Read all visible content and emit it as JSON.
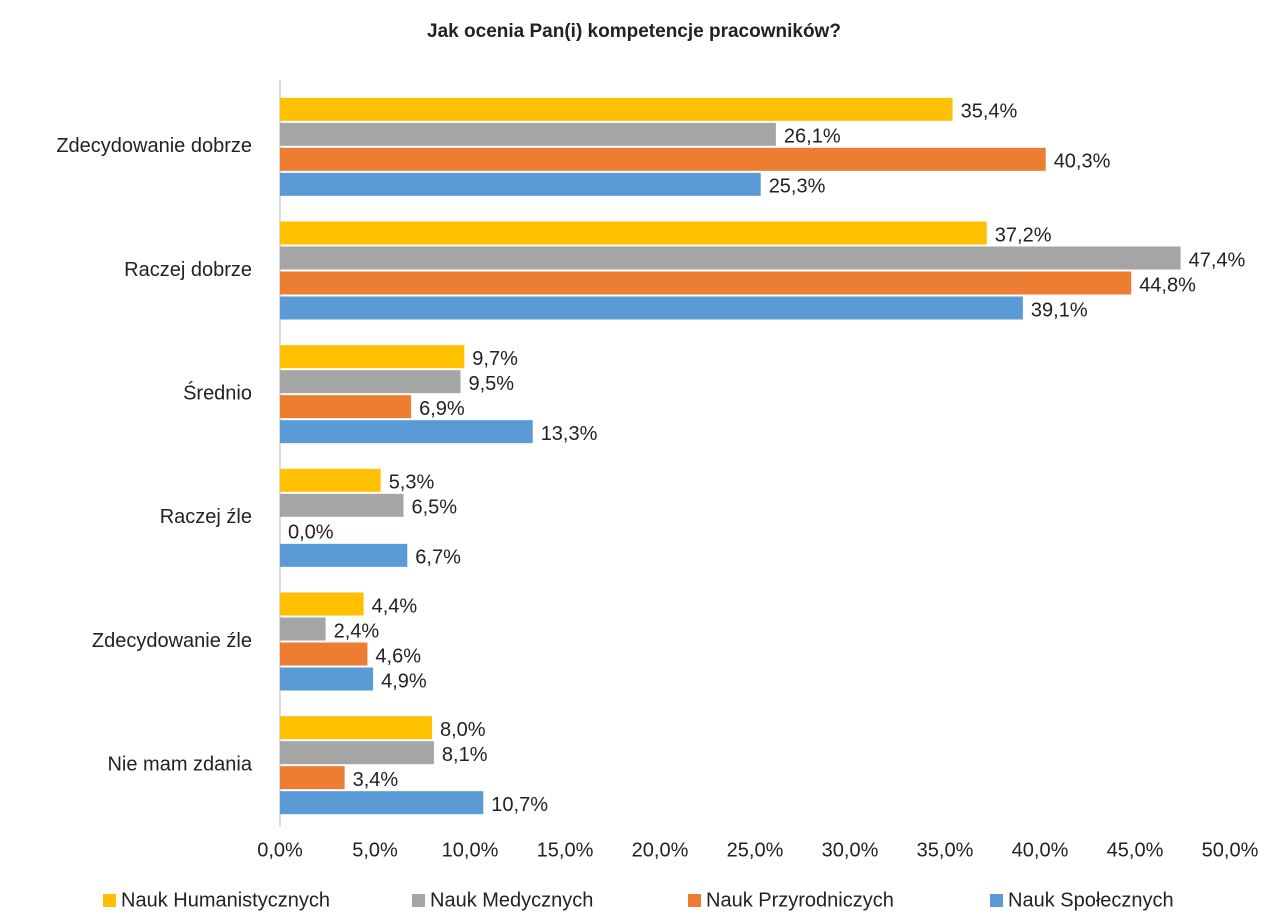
{
  "chart_data": {
    "type": "bar",
    "orientation": "horizontal",
    "title": "Jak ocenia Pan(i) kompetencje pracowników?",
    "categories": [
      "Zdecydowanie dobrze",
      "Raczej dobrze",
      "Średnio",
      "Raczej źle",
      "Zdecydowanie źle",
      "Nie mam zdania"
    ],
    "series": [
      {
        "name": "Nauk Humanistycznych",
        "color": "#ffc000",
        "values": [
          35.4,
          37.2,
          9.7,
          5.3,
          4.4,
          8.0
        ],
        "value_labels": [
          "35,4%",
          "37,2%",
          "9,7%",
          "5,3%",
          "4,4%",
          "8,0%"
        ]
      },
      {
        "name": "Nauk Medycznych",
        "color": "#a5a5a5",
        "values": [
          26.1,
          47.4,
          9.5,
          6.5,
          2.4,
          8.1
        ],
        "value_labels": [
          "26,1%",
          "47,4%",
          "9,5%",
          "6,5%",
          "2,4%",
          "8,1%"
        ]
      },
      {
        "name": "Nauk Przyrodniczych",
        "color": "#ed7d31",
        "values": [
          40.3,
          44.8,
          6.9,
          0.0,
          4.6,
          3.4
        ],
        "value_labels": [
          "40,3%",
          "44,8%",
          "6,9%",
          "0,0%",
          "4,6%",
          "3,4%"
        ]
      },
      {
        "name": "Nauk Społecznych",
        "color": "#5b9bd5",
        "values": [
          25.3,
          39.1,
          13.3,
          6.7,
          4.9,
          10.7
        ],
        "value_labels": [
          "25,3%",
          "39,1%",
          "13,3%",
          "6,7%",
          "4,9%",
          "10,7%"
        ]
      }
    ],
    "xlim": [
      0,
      50
    ],
    "xticks": [
      {
        "value": 0,
        "label": "0,0%"
      },
      {
        "value": 5,
        "label": "5,0%"
      },
      {
        "value": 10,
        "label": "10,0%"
      },
      {
        "value": 15,
        "label": "15,0%"
      },
      {
        "value": 20,
        "label": "20,0%"
      },
      {
        "value": 25,
        "label": "25,0%"
      },
      {
        "value": 30,
        "label": "30,0%"
      },
      {
        "value": 35,
        "label": "35,0%"
      },
      {
        "value": 40,
        "label": "40,0%"
      },
      {
        "value": 45,
        "label": "45,0%"
      },
      {
        "value": 50,
        "label": "50,0%"
      }
    ],
    "legend": "bottom"
  }
}
